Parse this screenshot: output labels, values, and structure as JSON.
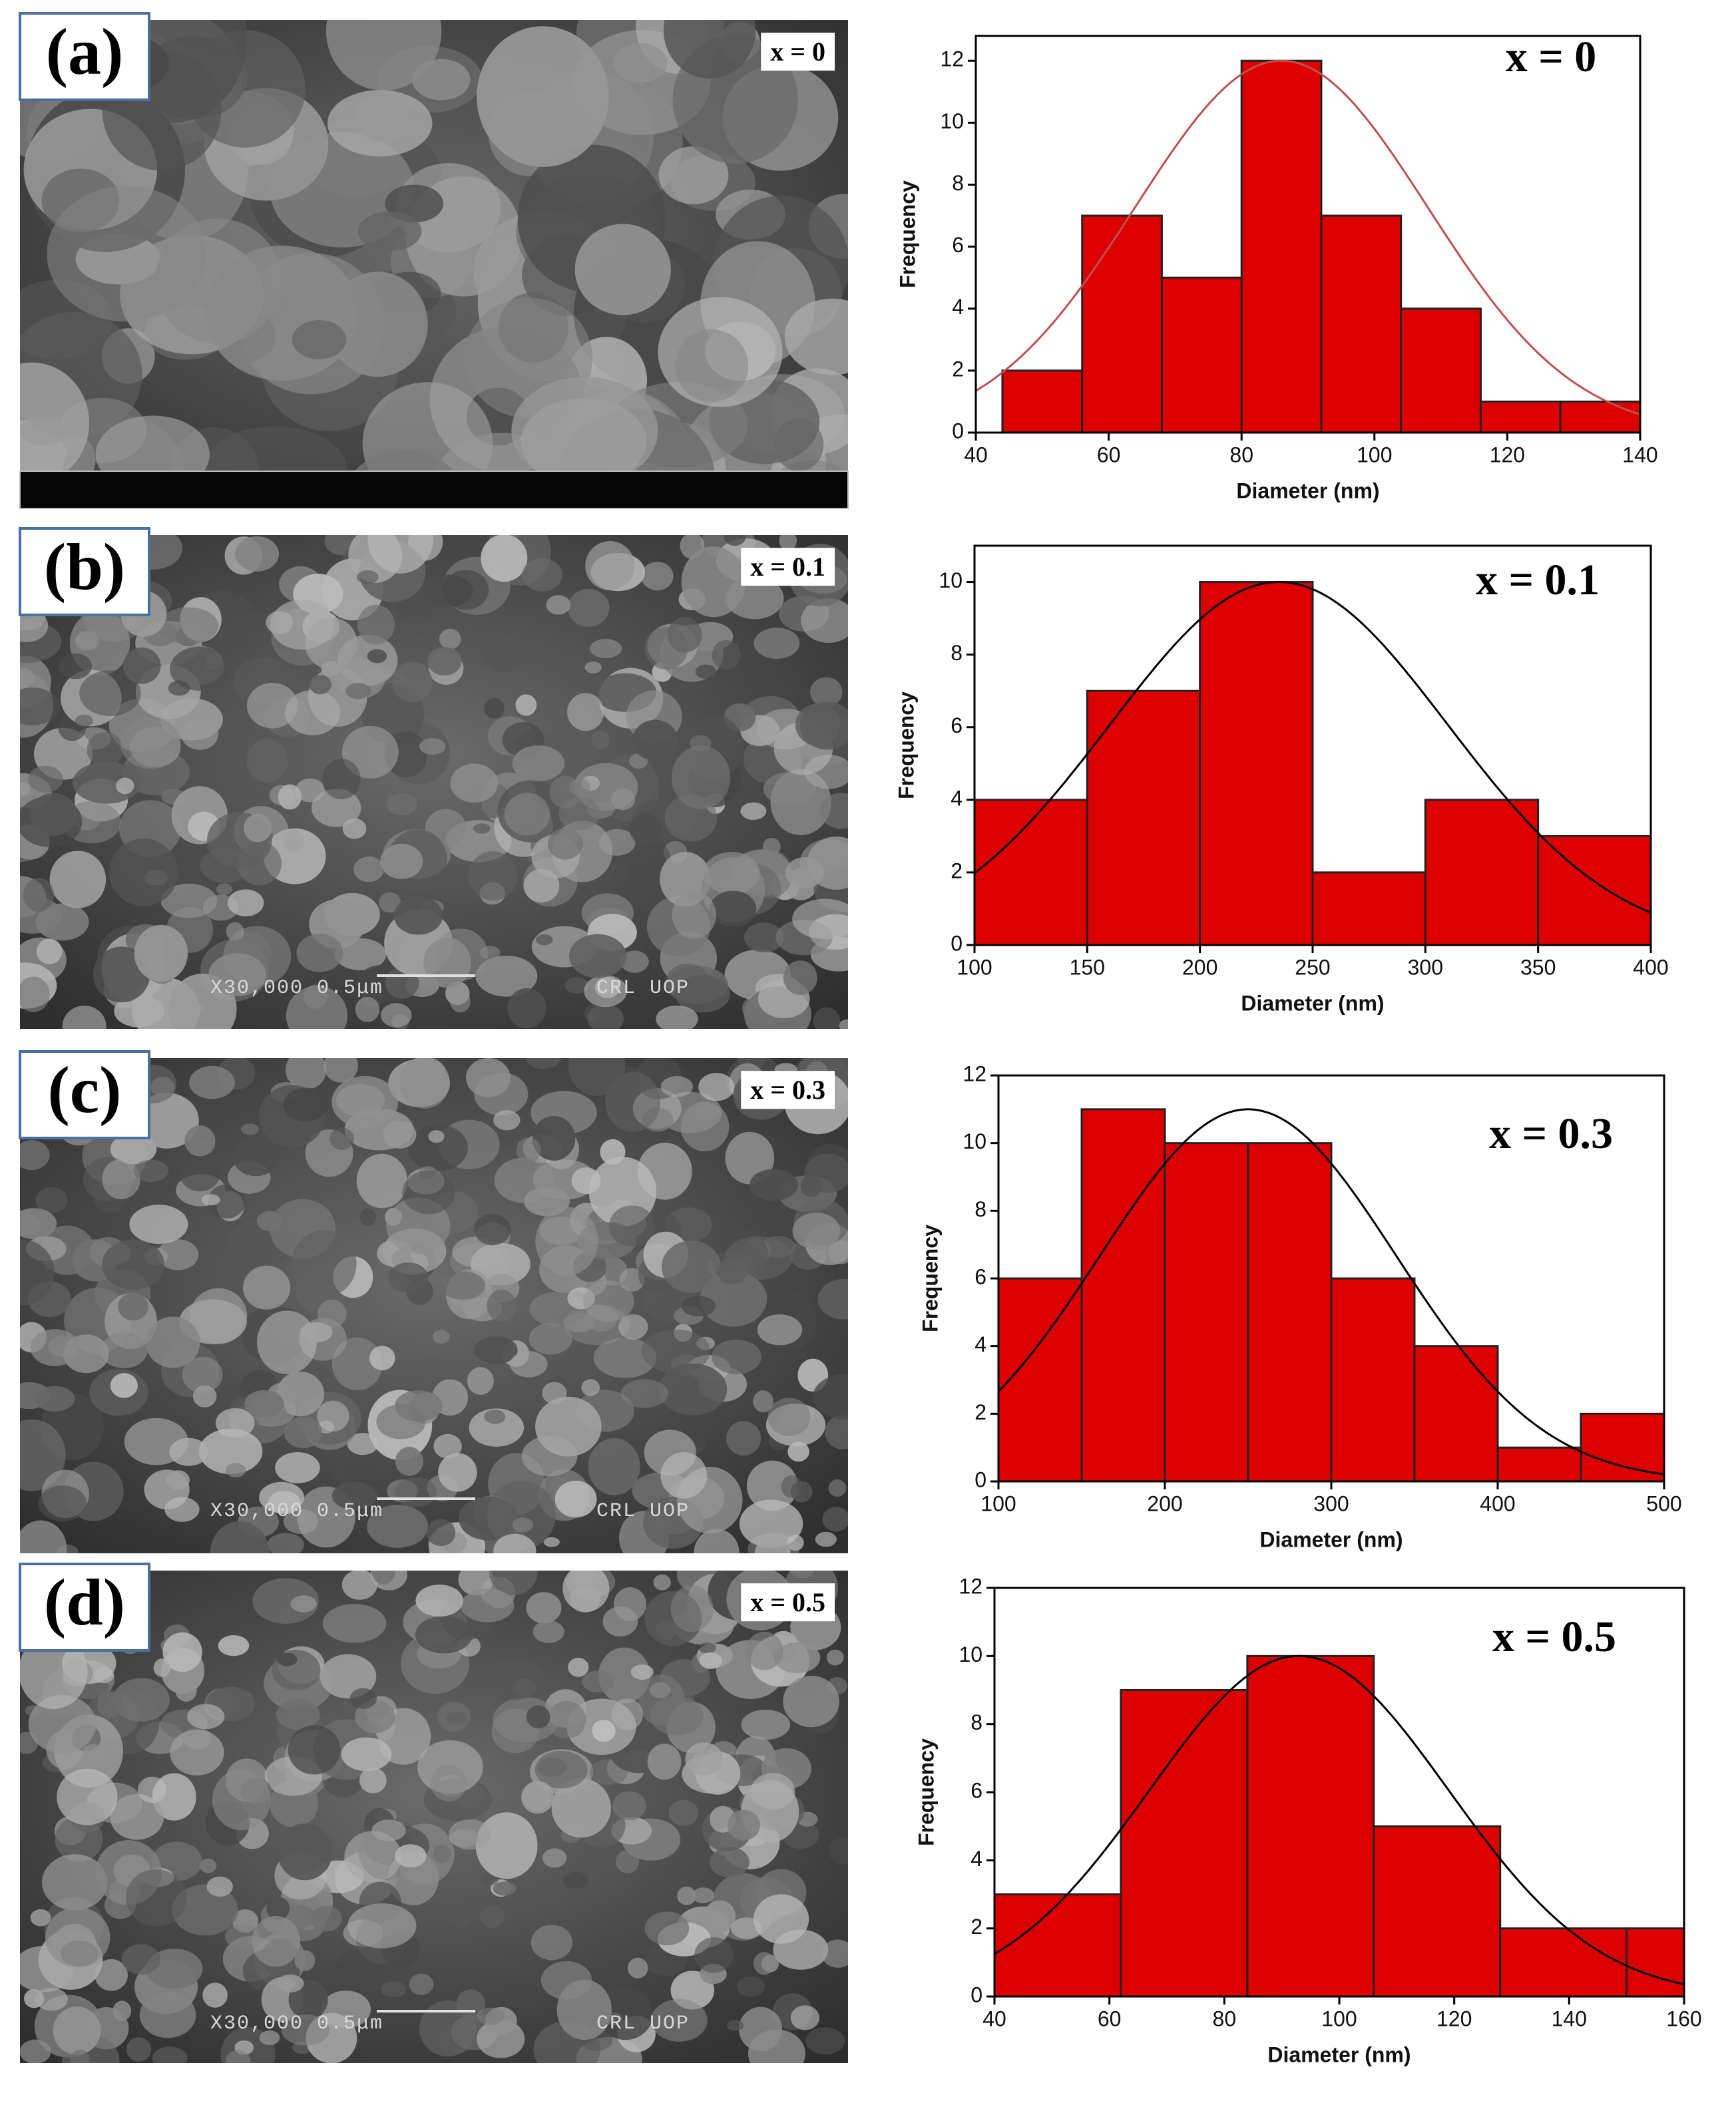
{
  "panels": [
    {
      "label": "(a)",
      "image_label": "x = 0"
    },
    {
      "label": "(b)",
      "image_label": "x = 0.1",
      "scale_text": "X30,000  0.5μm",
      "lab_text": "CRL  UOP"
    },
    {
      "label": "(c)",
      "image_label": "x = 0.3",
      "scale_text": "X30,000  0.5μm",
      "lab_text": "CRL  UOP"
    },
    {
      "label": "(d)",
      "image_label": "x = 0.5",
      "scale_text": "X30,000  0.5μm",
      "lab_text": "CRL  UOP"
    }
  ],
  "chart_data": [
    {
      "type": "histogram",
      "annotation": "x = 0",
      "x_label": "Diameter (nm)",
      "y_label": "Frequency",
      "bins": [
        44,
        56,
        68,
        80,
        92,
        104,
        116,
        128,
        140
      ],
      "values": [
        2,
        7,
        5,
        12,
        7,
        4,
        1,
        1
      ],
      "color": "#dd0000",
      "xlim": [
        40,
        140
      ],
      "xticks": [
        40,
        60,
        80,
        100,
        120,
        140
      ],
      "ylim": [
        0,
        12.8
      ],
      "yticks": [
        0,
        2,
        4,
        6,
        8,
        10,
        12
      ],
      "fit": {
        "peak": 12,
        "mean": 86,
        "sigma": 22,
        "color": "#c0504d"
      }
    },
    {
      "type": "histogram",
      "annotation": "x = 0.1",
      "x_label": "Diameter (nm)",
      "y_label": "Frequency",
      "bins": [
        100,
        150,
        200,
        250,
        300,
        350,
        400
      ],
      "values": [
        4,
        7,
        10,
        2,
        4,
        3
      ],
      "color": "#dd0000",
      "xlim": [
        100,
        400
      ],
      "xticks": [
        100,
        150,
        200,
        250,
        300,
        350,
        400
      ],
      "ylim": [
        0,
        11
      ],
      "yticks": [
        0,
        2,
        4,
        6,
        8,
        10
      ],
      "fit": {
        "peak": 10,
        "mean": 235,
        "sigma": 75,
        "color": "#000000"
      }
    },
    {
      "type": "histogram",
      "annotation": "x = 0.3",
      "x_label": "Diameter (nm)",
      "y_label": "Frequency",
      "bins": [
        100,
        150,
        200,
        250,
        300,
        350,
        400,
        450,
        500
      ],
      "values": [
        6,
        11,
        10,
        10,
        6,
        4,
        1,
        2
      ],
      "color": "#dd0000",
      "xlim": [
        100,
        500
      ],
      "xticks": [
        100,
        200,
        300,
        400,
        500
      ],
      "ylim": [
        0,
        12
      ],
      "yticks": [
        0,
        2,
        4,
        6,
        8,
        10,
        12
      ],
      "fit": {
        "peak": 11,
        "mean": 250,
        "sigma": 89,
        "color": "#000000"
      }
    },
    {
      "type": "histogram",
      "annotation": "x = 0.5",
      "x_label": "Diameter (nm)",
      "y_label": "Frequency",
      "bins": [
        40,
        62,
        84,
        106,
        128,
        150,
        160
      ],
      "values": [
        3,
        9,
        10,
        5,
        2,
        2
      ],
      "color": "#dd0000",
      "xlim": [
        40,
        160
      ],
      "xticks": [
        40,
        60,
        80,
        100,
        120,
        140,
        160
      ],
      "ylim": [
        0,
        12
      ],
      "yticks": [
        0,
        2,
        4,
        6,
        8,
        10,
        12
      ],
      "fit": {
        "peak": 10,
        "mean": 93,
        "sigma": 26,
        "color": "#000000"
      }
    }
  ]
}
